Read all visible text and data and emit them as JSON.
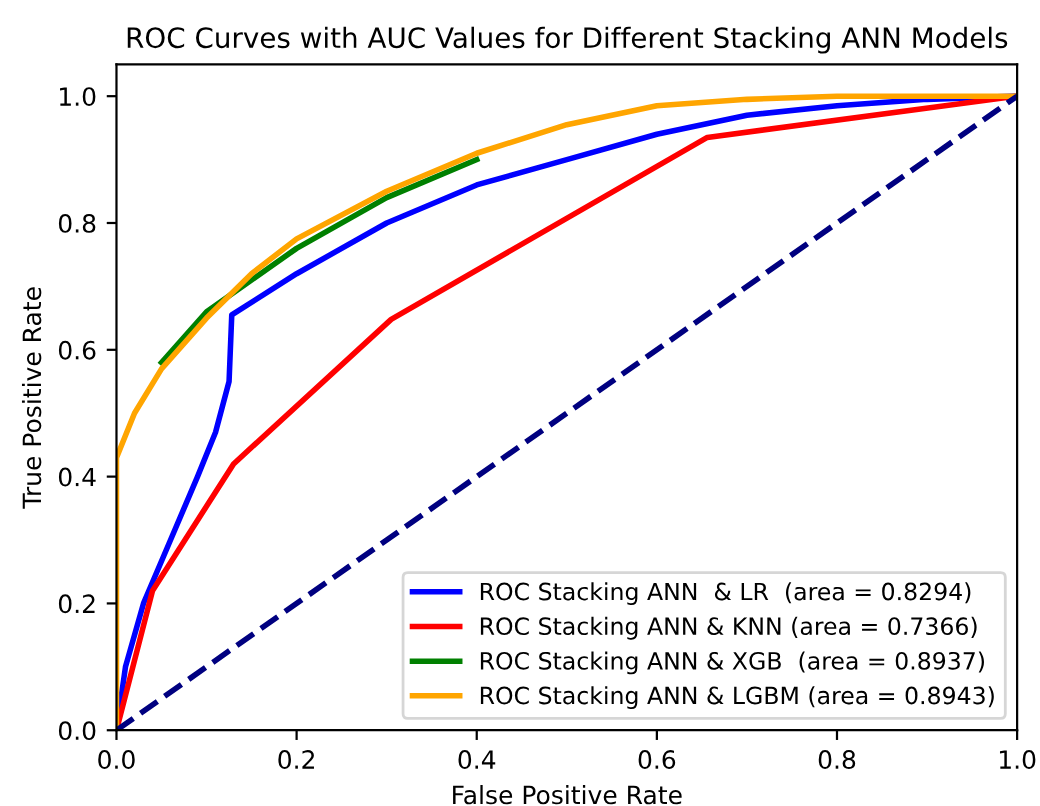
{
  "chart_data": {
    "type": "line",
    "title": "ROC Curves with AUC Values for Different Stacking ANN Models",
    "xlabel": "False Positive Rate",
    "ylabel": "True Positive Rate",
    "xlim": [
      0.0,
      1.0
    ],
    "ylim": [
      0.0,
      1.05
    ],
    "xticks": [
      {
        "value": 0,
        "label": "0.0"
      },
      0.2,
      0.4,
      0.6,
      0.8,
      {
        "value": 1,
        "label": "1.0"
      }
    ],
    "yticks": [
      {
        "value": 0,
        "label": "0.0"
      },
      0.2,
      0.4,
      0.6,
      0.8,
      {
        "value": 1,
        "label": "1.0"
      }
    ],
    "legend": "bottom right",
    "grid": false,
    "line_style": "solid",
    "series": [
      {
        "name": "ROC Stacking ANN  & LR  (area = 0.8294)",
        "color": "#0000ff",
        "x": [
          0,
          0.01,
          0.03,
          0.06,
          0.09,
          0.11,
          0.125,
          0.128,
          0.2,
          0.3,
          0.4,
          0.5,
          0.6,
          0.7,
          0.8,
          0.9,
          1
        ],
        "values": [
          0,
          0.1,
          0.2,
          0.3,
          0.4,
          0.47,
          0.55,
          0.655,
          0.72,
          0.8,
          0.86,
          0.9,
          0.94,
          0.97,
          0.985,
          0.995,
          1
        ]
      },
      {
        "name": "ROC Stacking ANN & KNN (area = 0.7366)",
        "color": "#ff0000",
        "x": [
          0,
          0.04,
          0.13,
          0.305,
          0.656,
          1
        ],
        "values": [
          0,
          0.22,
          0.42,
          0.648,
          0.935,
          1
        ]
      },
      {
        "name": "ROC Stacking ANN & XGB  (area = 0.8937)",
        "color": "#008000",
        "x": [
          0.05,
          0.1,
          0.15,
          0.2,
          0.3,
          0.4
        ],
        "values": [
          0.58,
          0.66,
          0.71,
          0.76,
          0.84,
          0.9
        ]
      },
      {
        "name": "ROC Stacking ANN & LGBM (area = 0.8943)",
        "color": "#ffa500",
        "x": [
          0,
          0,
          0.02,
          0.05,
          0.1,
          0.15,
          0.2,
          0.3,
          0.4,
          0.5,
          0.6,
          0.7,
          0.8,
          1
        ],
        "values": [
          0,
          0.43,
          0.5,
          0.57,
          0.65,
          0.72,
          0.775,
          0.85,
          0.91,
          0.955,
          0.985,
          0.995,
          1,
          1
        ]
      },
      {
        "color": "#000080",
        "line_style": "dashed",
        "x": [
          0,
          1
        ],
        "values": [
          0,
          1
        ]
      }
    ]
  }
}
